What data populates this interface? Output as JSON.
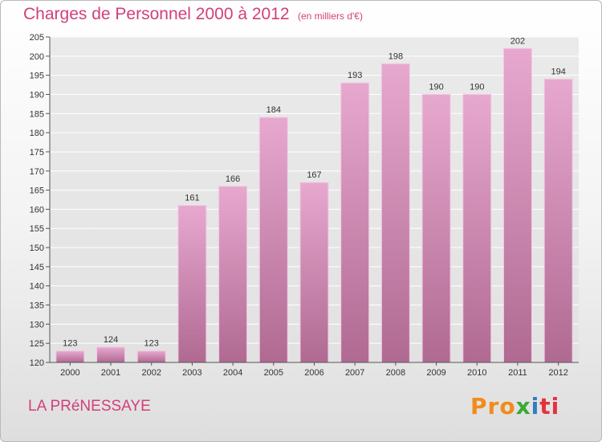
{
  "header": {
    "title": "Charges de Personnel 2000 à 2012",
    "subtitle": "(en milliers d'€)"
  },
  "footer": {
    "place": "LA PRéNESSAYE",
    "brand_parts": [
      "Pro",
      "x",
      "i",
      "ti"
    ]
  },
  "colors": {
    "accent": "#d23f7a",
    "bar_top": "#e7a8cf",
    "bar_bottom": "#b06a92"
  },
  "chart_data": {
    "type": "bar",
    "categories": [
      "2000",
      "2001",
      "2002",
      "2003",
      "2004",
      "2005",
      "2006",
      "2007",
      "2008",
      "2009",
      "2010",
      "2011",
      "2012"
    ],
    "values": [
      123,
      124,
      123,
      161,
      166,
      184,
      167,
      193,
      198,
      190,
      190,
      202,
      194
    ],
    "title": "Charges de Personnel 2000 à 2012",
    "ylim": [
      120,
      205
    ],
    "yticks": [
      120,
      125,
      130,
      135,
      140,
      145,
      150,
      155,
      160,
      165,
      170,
      175,
      180,
      185,
      190,
      195,
      200,
      205
    ],
    "grid": true
  }
}
